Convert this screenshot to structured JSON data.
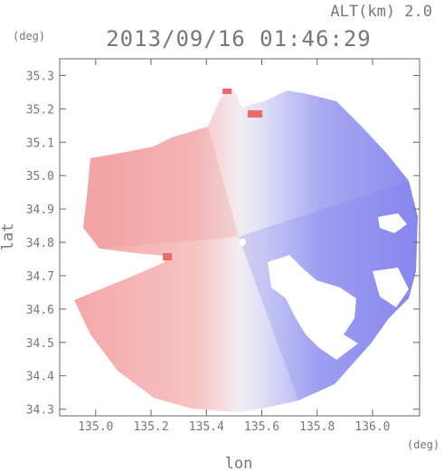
{
  "header": {
    "altitude": "ALT(km) 2.0",
    "timestamp": "2013/09/16 01:46:29"
  },
  "chart_data": {
    "type": "heatmap",
    "title": "2013/09/16 01:46:29",
    "subtitle": "ALT(km) 2.0",
    "xlabel": "lon",
    "ylabel": "lat",
    "x_unit": "(deg)",
    "y_unit": "(deg)",
    "xlim": [
      134.87,
      136.17
    ],
    "ylim": [
      34.28,
      35.35
    ],
    "x_ticks": [
      135.0,
      135.2,
      135.4,
      135.6,
      135.8,
      136.0
    ],
    "x_tick_labels": [
      "135.0",
      "135.2",
      "135.4",
      "135.6",
      "135.8",
      "136.0"
    ],
    "y_ticks": [
      34.3,
      34.4,
      34.5,
      34.6,
      34.7,
      34.8,
      34.9,
      35.0,
      35.1,
      35.2,
      35.3
    ],
    "y_tick_labels": [
      "34.3",
      "34.4",
      "34.5",
      "34.6",
      "34.7",
      "34.8",
      "34.9",
      "35.0",
      "35.1",
      "35.2",
      "35.3"
    ],
    "radar_center": {
      "lon": 135.53,
      "lat": 34.8
    },
    "grid": false,
    "colors": {
      "positive": "#ee6a6a",
      "negative": "#6b6bee",
      "neutral": "#f2f2f6",
      "axis": "#666666",
      "label": "#777777"
    }
  }
}
